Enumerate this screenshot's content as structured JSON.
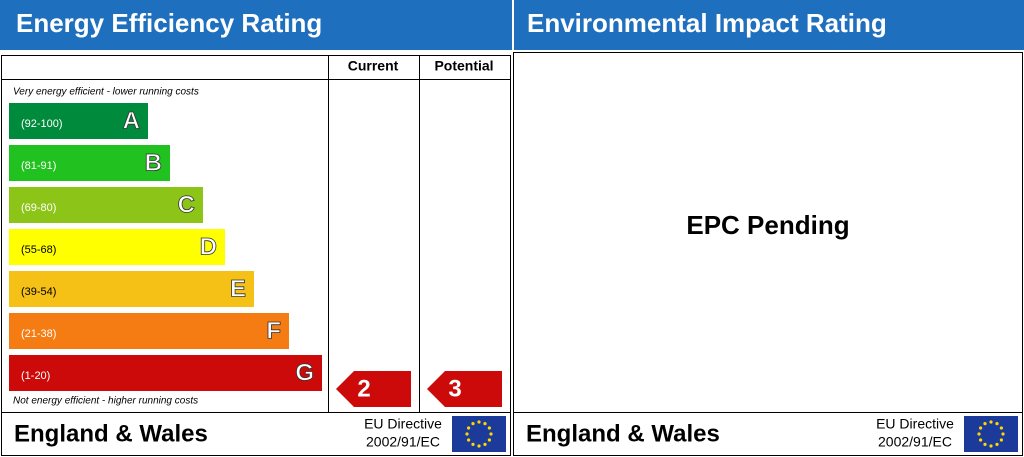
{
  "left": {
    "title": "Energy Efficiency Rating",
    "columns": [
      "Current",
      "Potential"
    ],
    "top_note": "Very energy efficient - lower running costs",
    "bottom_note": "Not energy efficient - higher running costs",
    "bands": [
      {
        "range": "(92-100)",
        "letter": "A",
        "color": "#008a3b"
      },
      {
        "range": "(81-91)",
        "letter": "B",
        "color": "#21c21f"
      },
      {
        "range": "(69-80)",
        "letter": "C",
        "color": "#8dc418"
      },
      {
        "range": "(55-68)",
        "letter": "D",
        "color": "#ffff00"
      },
      {
        "range": "(39-54)",
        "letter": "E",
        "color": "#f5c116"
      },
      {
        "range": "(21-38)",
        "letter": "F",
        "color": "#f57c12"
      },
      {
        "range": "(1-20)",
        "letter": "G",
        "color": "#cc0a0a"
      }
    ],
    "current": {
      "value": 2,
      "color": "#cc0a0a"
    },
    "potential": {
      "value": 3,
      "color": "#cc0a0a"
    },
    "footer": {
      "region": "England & Wales",
      "directive": [
        "EU Directive",
        "2002/91/EC"
      ]
    }
  },
  "right": {
    "title": "Environmental Impact Rating",
    "status": "EPC Pending",
    "footer": {
      "region": "England & Wales",
      "directive": [
        "EU Directive",
        "2002/91/EC"
      ]
    }
  }
}
